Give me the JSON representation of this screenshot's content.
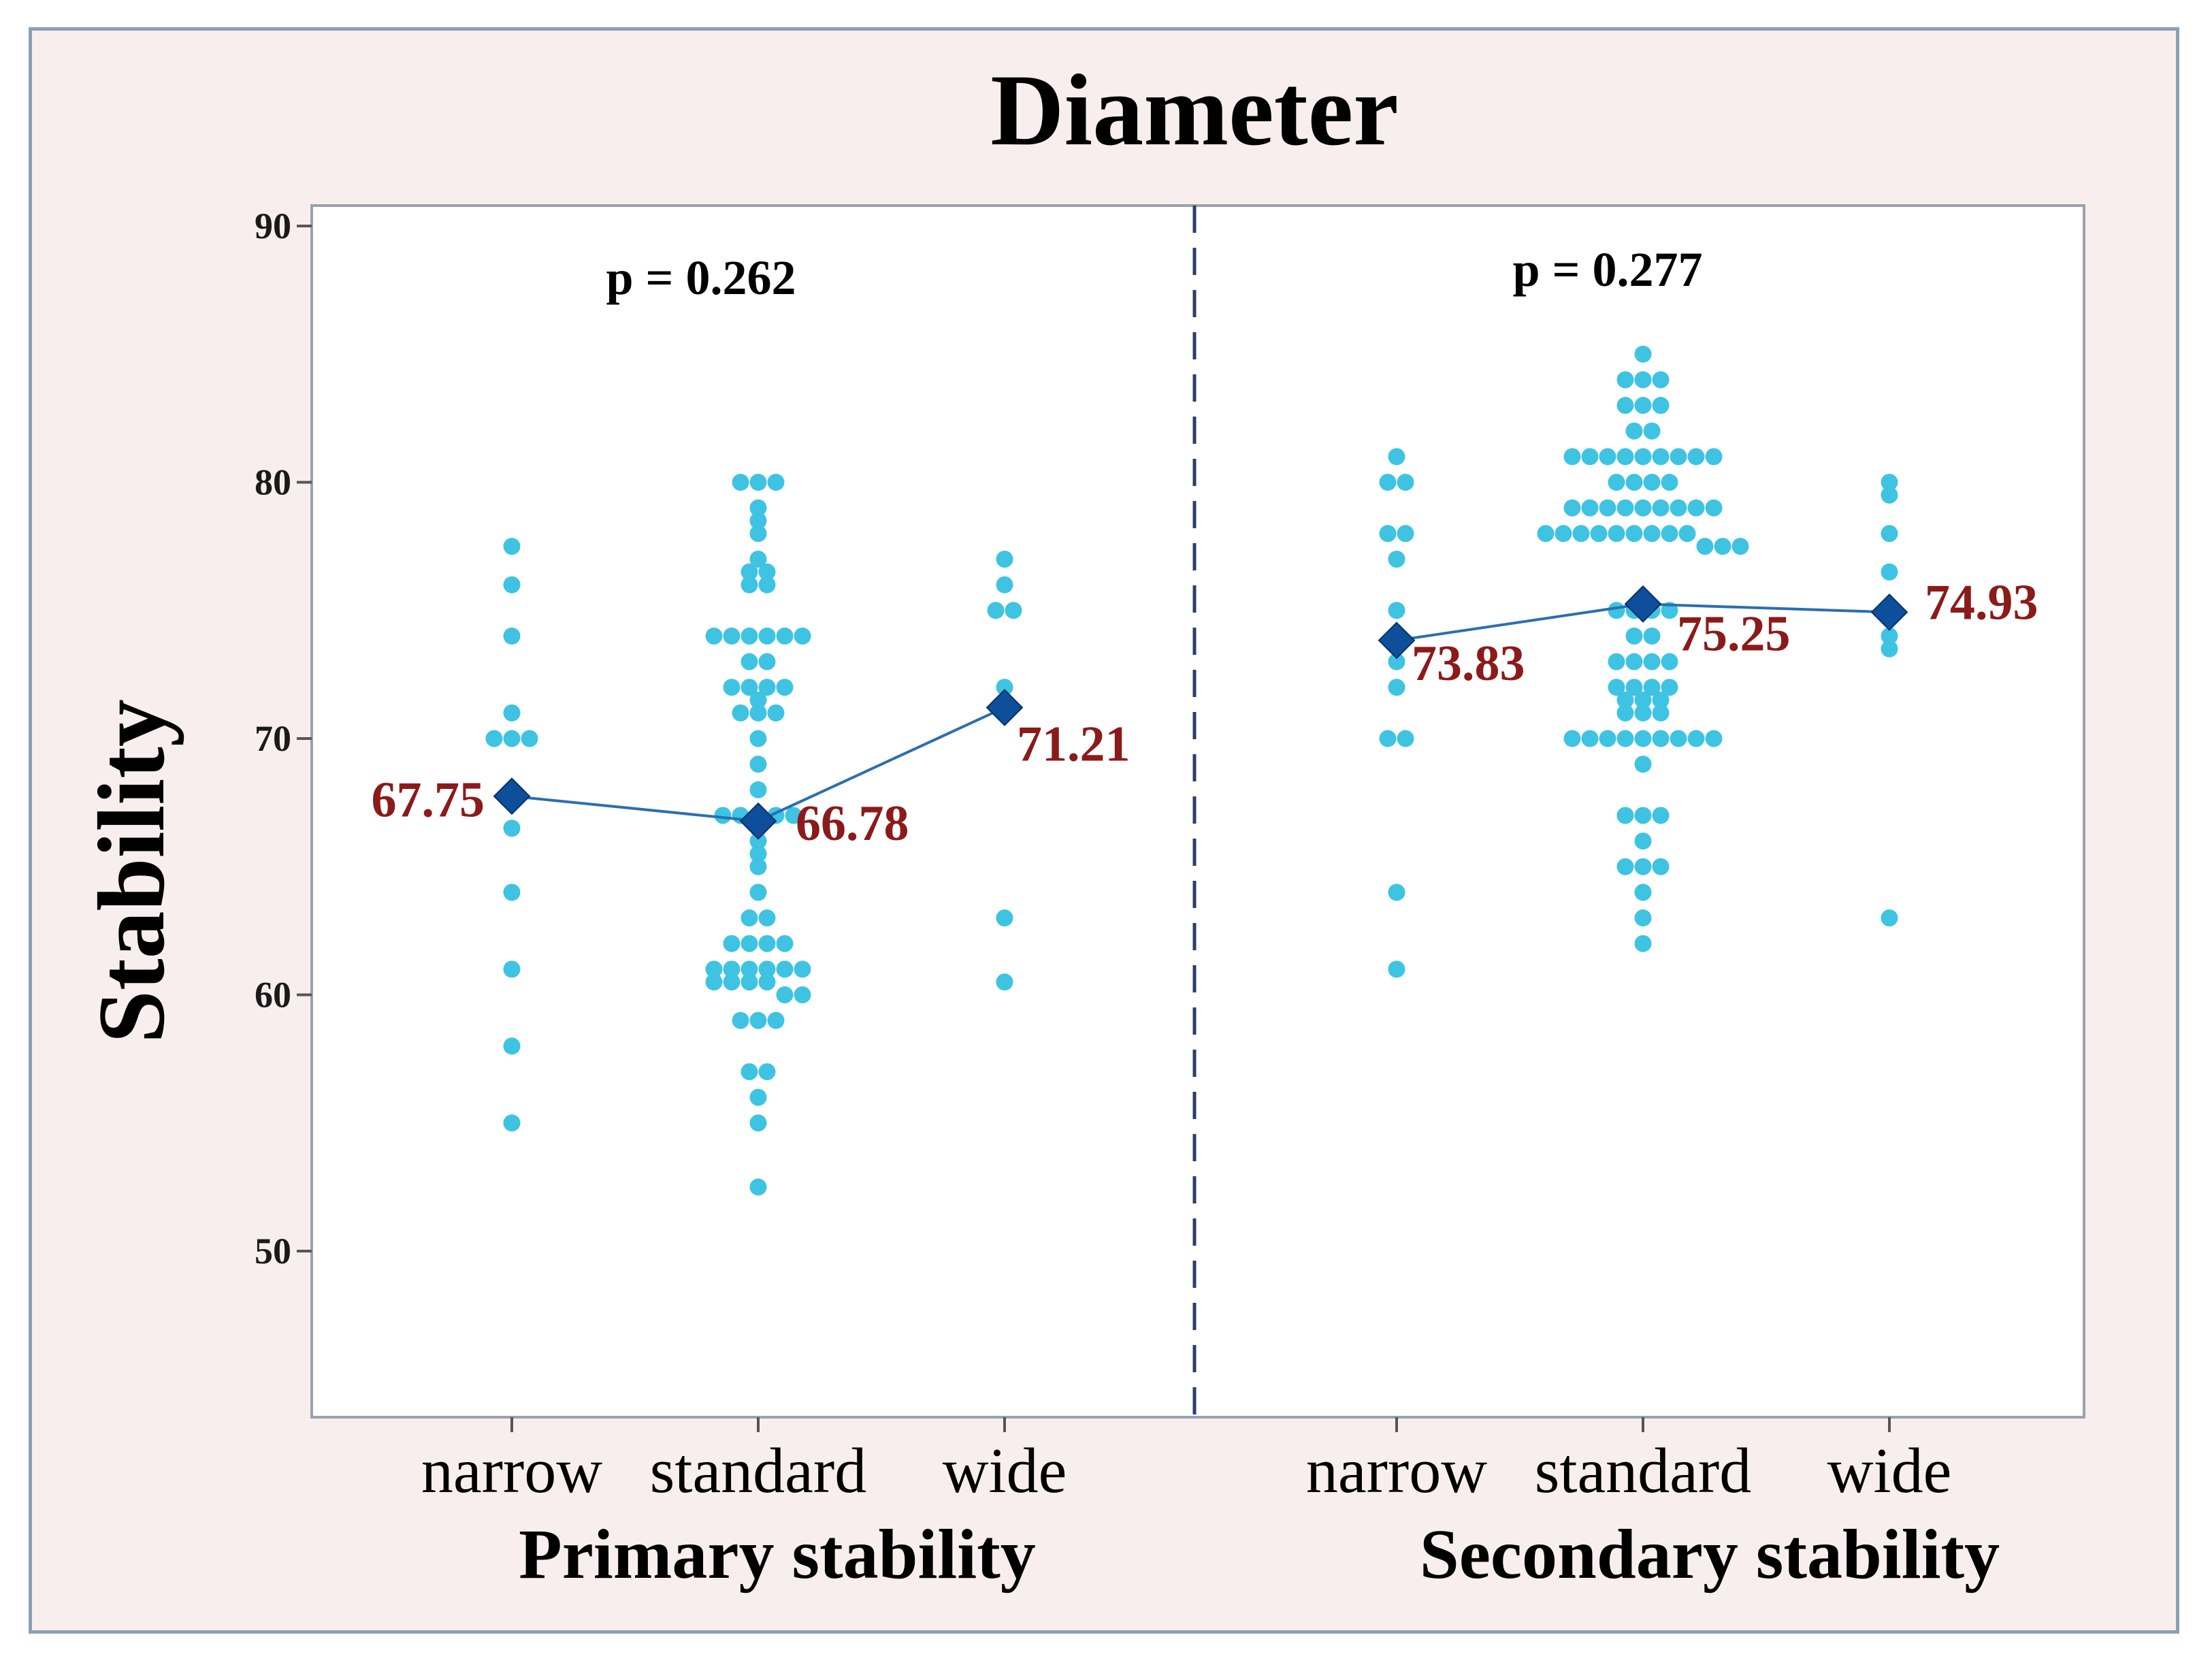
{
  "chart_data": {
    "type": "scatter",
    "subtype": "individual value plot with connected means",
    "title": "Diameter",
    "ylabel": "Stability",
    "ylim": [
      44,
      90
    ],
    "yticks": [
      50,
      60,
      70,
      80,
      90
    ],
    "groups": [
      {
        "name": "Primary stability",
        "p_value_text": "p = 0.262",
        "categories": [
          "narrow",
          "standard",
          "wide"
        ],
        "means": [
          67.75,
          66.78,
          71.21
        ],
        "mean_labels": [
          "67.75",
          "66.78",
          "71.21"
        ],
        "points": [
          [
            77.5,
            76,
            74,
            71,
            70,
            70,
            70,
            68,
            66.5,
            64,
            61,
            58,
            55
          ],
          [
            80,
            80,
            80,
            79,
            78.5,
            78,
            77,
            76.5,
            76.5,
            76,
            76,
            74,
            74,
            74,
            74,
            74,
            74,
            73,
            73,
            72,
            72,
            72,
            72,
            71.5,
            71,
            71,
            71,
            70,
            69,
            68,
            67,
            67,
            67,
            67,
            67,
            66.5,
            66,
            65.5,
            65,
            64,
            63,
            63,
            62,
            62,
            62,
            62,
            61,
            61,
            61,
            61,
            61,
            61,
            60.5,
            60.5,
            60.5,
            60.5,
            60,
            60,
            59,
            59,
            59,
            57,
            57,
            56,
            55,
            52.5
          ],
          [
            77,
            76,
            75,
            75,
            72,
            71,
            63,
            60.5
          ]
        ]
      },
      {
        "name": "Secondary stability",
        "p_value_text": "p = 0.277",
        "categories": [
          "narrow",
          "standard",
          "wide"
        ],
        "means": [
          73.83,
          75.25,
          74.93
        ],
        "mean_labels": [
          "73.83",
          "75.25",
          "74.93"
        ],
        "points": [
          [
            81,
            80,
            80,
            78,
            78,
            77,
            75,
            73,
            72,
            70,
            70,
            64,
            61
          ],
          [
            85,
            84,
            84,
            84,
            83,
            83,
            83,
            82,
            82,
            81,
            81,
            81,
            81,
            81,
            81,
            81,
            81,
            81,
            80,
            80,
            80,
            80,
            79,
            79,
            79,
            79,
            79,
            79,
            79,
            79,
            79,
            78,
            78,
            78,
            78,
            78,
            78,
            78,
            78,
            78,
            77.5,
            77.5,
            77.5,
            75,
            75,
            75,
            75,
            74,
            74,
            73,
            73,
            73,
            73,
            72,
            72,
            72,
            72,
            71.5,
            71.5,
            71.5,
            71,
            71,
            71,
            70,
            70,
            70,
            70,
            70,
            70,
            70,
            70,
            70,
            69,
            67,
            67,
            67,
            66,
            65,
            65,
            65,
            64,
            63,
            62
          ],
          [
            80,
            79.5,
            78,
            76.5,
            75,
            74,
            73.5,
            63
          ]
        ]
      }
    ],
    "colors": {
      "points": "#3ec3e3",
      "mean_marker": "#0d4f9a",
      "mean_line": "#2a6fb0",
      "mean_label": "#8b1a1a",
      "divider": "#2c3e6a"
    }
  }
}
